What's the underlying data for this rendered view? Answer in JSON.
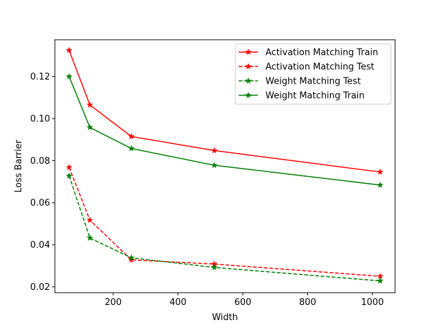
{
  "chart_data": {
    "type": "line",
    "xlabel": "Width",
    "ylabel": "Loss Barrier",
    "xlim": [
      20,
      1070
    ],
    "ylim": [
      0.0172,
      0.1375
    ],
    "x_ticks": [
      200,
      400,
      600,
      800,
      1000
    ],
    "y_ticks": [
      0.02,
      0.04,
      0.06,
      0.08,
      0.1,
      0.12
    ],
    "x_tick_labels": [
      "200",
      "400",
      "600",
      "800",
      "1000"
    ],
    "y_tick_labels": [
      "0.02",
      "0.04",
      "0.06",
      "0.08",
      "0.10",
      "0.12"
    ],
    "grid": false,
    "legend_position": "top-right",
    "x": [
      64,
      128,
      256,
      512,
      1024
    ],
    "series": [
      {
        "name": "Activation Matching Train",
        "values": [
          0.1325,
          0.1065,
          0.0915,
          0.0848,
          0.0746
        ],
        "color": "#ff0000",
        "linestyle": "solid"
      },
      {
        "name": "Activation Matching Test",
        "values": [
          0.0768,
          0.0517,
          0.0328,
          0.0308,
          0.025
        ],
        "color": "#ff0000",
        "linestyle": "dashed"
      },
      {
        "name": "Weight Matching Test",
        "values": [
          0.0728,
          0.0432,
          0.0338,
          0.0292,
          0.0228
        ],
        "color": "#008000",
        "linestyle": "dashed"
      },
      {
        "name": "Weight Matching Train",
        "values": [
          0.12,
          0.0958,
          0.0858,
          0.0778,
          0.0684
        ],
        "color": "#008000",
        "linestyle": "solid"
      }
    ]
  }
}
